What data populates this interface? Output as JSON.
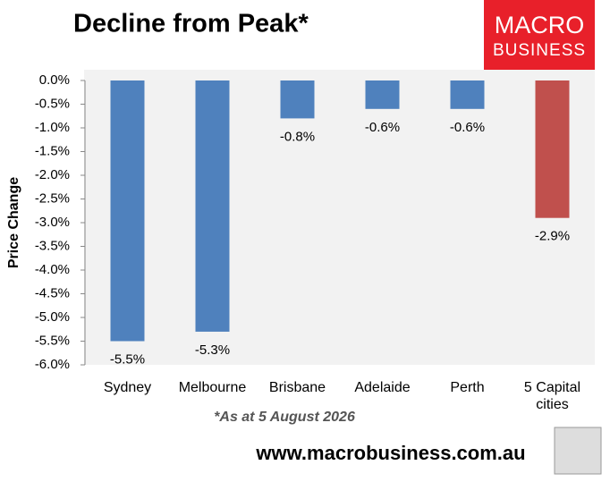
{
  "chart_data": {
    "type": "bar",
    "title": "Decline from Peak*",
    "y_label": "Price Change",
    "footnote": "*As at 5 August 2026",
    "source": "www.macrobusiness.com.au",
    "logo": [
      "MACRO",
      "BUSINESS"
    ],
    "categories": [
      "Sydney",
      "Melbourne",
      "Brisbane",
      "Adelaide",
      "Perth",
      "5 Capital cities"
    ],
    "values": [
      -5.5,
      -5.3,
      -0.8,
      -0.6,
      -0.6,
      -2.9
    ],
    "value_labels": [
      "-5.5%",
      "-5.3%",
      "-0.8%",
      "-0.6%",
      "-0.6%",
      "-2.9%"
    ],
    "colors": [
      "#4f81bd",
      "#4f81bd",
      "#4f81bd",
      "#4f81bd",
      "#4f81bd",
      "#c0504d"
    ],
    "ylim": [
      -6,
      0
    ],
    "yticks": [
      {
        "value": 0,
        "label": "0.0%"
      },
      {
        "value": -0.5,
        "label": "-0.5%"
      },
      {
        "value": -1,
        "label": "-1.0%"
      },
      {
        "value": -1.5,
        "label": "-1.5%"
      },
      {
        "value": -2,
        "label": "-2.0%"
      },
      {
        "value": -2.5,
        "label": "-2.5%"
      },
      {
        "value": -3,
        "label": "-3.0%"
      },
      {
        "value": -3.5,
        "label": "-3.5%"
      },
      {
        "value": -4,
        "label": "-4.0%"
      },
      {
        "value": -4.5,
        "label": "-4.5%"
      },
      {
        "value": -5,
        "label": "-5.0%"
      },
      {
        "value": -5.5,
        "label": "-5.5%"
      },
      {
        "value": -6,
        "label": "-6.0%"
      }
    ]
  }
}
